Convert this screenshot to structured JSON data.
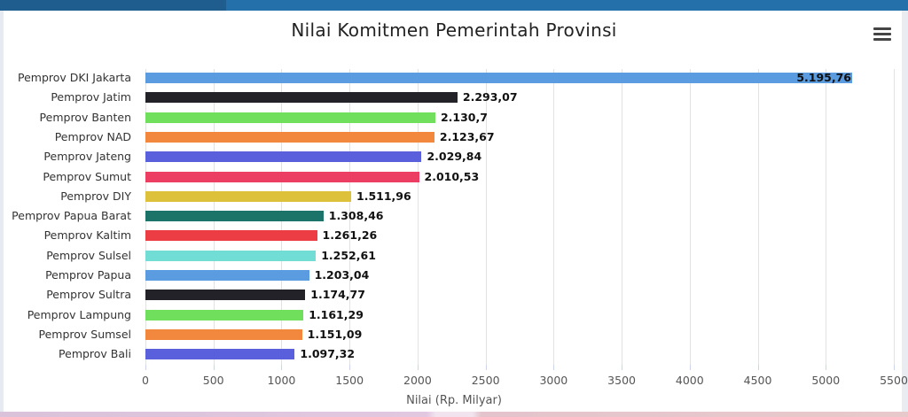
{
  "chart_data": {
    "type": "bar",
    "orientation": "horizontal",
    "title": "Nilai Komitmen Pemerintah Provinsi",
    "xlabel": "Nilai (Rp. Milyar)",
    "ylabel": "",
    "xlim": [
      0,
      5500
    ],
    "grid": true,
    "legend": null,
    "x_ticks": [
      "0",
      "500",
      "1000",
      "1500",
      "2000",
      "2500",
      "3000",
      "3500",
      "4000",
      "4500",
      "5000",
      "5500"
    ],
    "categories": [
      "Pemprov DKI Jakarta",
      "Pemprov Jatim",
      "Pemprov Banten",
      "Pemprov NAD",
      "Pemprov Jateng",
      "Pemprov Sumut",
      "Pemprov DIY",
      "Pemprov Papua Barat",
      "Pemprov Kaltim",
      "Pemprov Sulsel",
      "Pemprov Papua",
      "Pemprov Sultra",
      "Pemprov Lampung",
      "Pemprov Sumsel",
      "Pemprov Bali"
    ],
    "values": [
      5195.76,
      2293.07,
      2130.7,
      2123.67,
      2029.84,
      2010.53,
      1511.96,
      1308.46,
      1261.26,
      1252.61,
      1203.04,
      1174.77,
      1161.29,
      1151.09,
      1097.32
    ],
    "data_labels": [
      "5.195,76",
      "2.293,07",
      "2.130,7",
      "2.123,67",
      "2.029,84",
      "2.010,53",
      "1.511,96",
      "1.308,46",
      "1.261,26",
      "1.252,61",
      "1.203,04",
      "1.174,77",
      "1.161,29",
      "1.151,09",
      "1.097,32"
    ],
    "colors": [
      "#5b9be0",
      "#222228",
      "#6fdf5c",
      "#f2883d",
      "#5a5fdb",
      "#ec3d63",
      "#ddc13a",
      "#1c7468",
      "#ec3d45",
      "#72ddd4",
      "#5b9be0",
      "#222228",
      "#6fdf5c",
      "#f2883d",
      "#5a5fdb"
    ]
  },
  "ui": {
    "menu_icon": "hamburger-menu-icon"
  }
}
